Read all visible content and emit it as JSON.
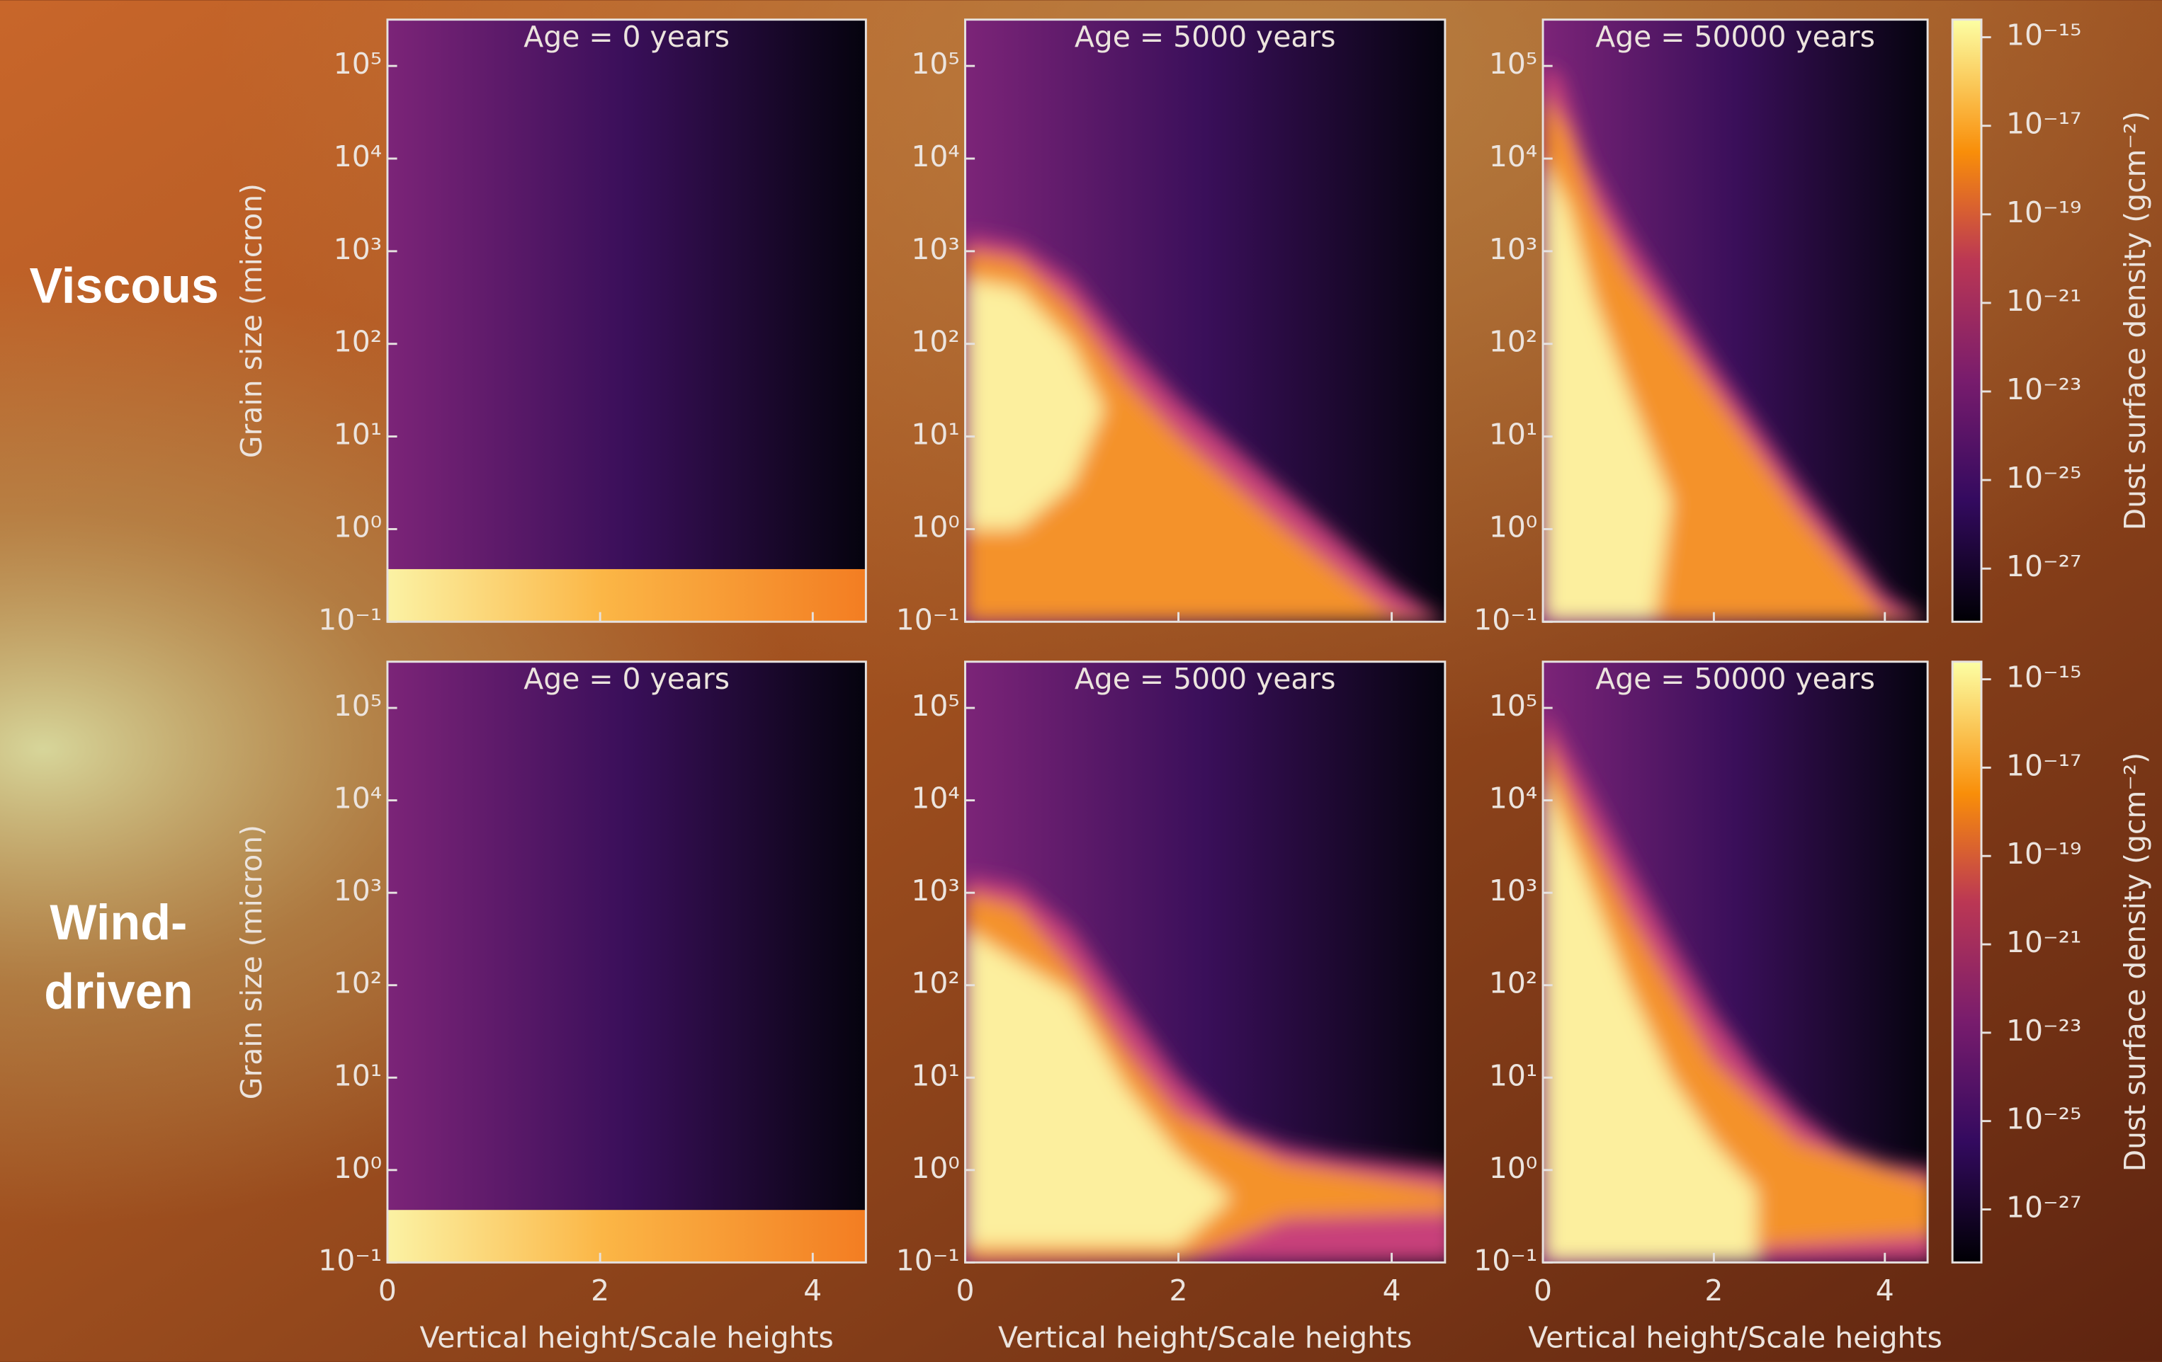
{
  "rows": [
    {
      "label": [
        "Viscous"
      ]
    },
    {
      "label": [
        "Wind-",
        "driven"
      ]
    }
  ],
  "chart_data": [
    {
      "type": "heatmap",
      "title": "Age = 0 years",
      "ylabel": "Grain size (micron)",
      "xlim": [
        0,
        4.5
      ],
      "xticks": [
        0,
        2,
        4
      ],
      "log_y": true,
      "ylim": [
        0.1,
        316228
      ],
      "yticks": [
        {
          "value": 0.1,
          "label": "10⁻¹"
        },
        {
          "value": 1,
          "label": "10⁰"
        },
        {
          "value": 10,
          "label": "10¹"
        },
        {
          "value": 100,
          "label": "10²"
        },
        {
          "value": 1000,
          "label": "10³"
        },
        {
          "value": 10000,
          "label": "10⁴"
        },
        {
          "value": 100000,
          "label": "10⁵"
        }
      ]
    },
    {
      "type": "heatmap",
      "title": "Age = 5000 years",
      "xlim": [
        0,
        4.5
      ],
      "xticks": [
        0,
        2,
        4
      ],
      "log_y": true,
      "ylim": [
        0.1,
        316228
      ],
      "yticks": [
        {
          "value": 0.1,
          "label": "10⁻¹"
        },
        {
          "value": 1,
          "label": "10⁰"
        },
        {
          "value": 10,
          "label": "10¹"
        },
        {
          "value": 100,
          "label": "10²"
        },
        {
          "value": 1000,
          "label": "10³"
        },
        {
          "value": 10000,
          "label": "10⁴"
        },
        {
          "value": 100000,
          "label": "10⁵"
        }
      ]
    },
    {
      "type": "heatmap",
      "title": "Age = 50000 years",
      "xlim": [
        0,
        4.5
      ],
      "xticks": [
        0,
        2,
        4
      ],
      "log_y": true,
      "ylim": [
        0.1,
        316228
      ],
      "yticks": [
        {
          "value": 0.1,
          "label": "10⁻¹"
        },
        {
          "value": 1,
          "label": "10⁰"
        },
        {
          "value": 10,
          "label": "10¹"
        },
        {
          "value": 100,
          "label": "10²"
        },
        {
          "value": 1000,
          "label": "10³"
        },
        {
          "value": 10000,
          "label": "10⁴"
        },
        {
          "value": 100000,
          "label": "10⁵"
        }
      ]
    },
    {
      "type": "heatmap",
      "title": "Age = 0 years",
      "xlabel": "Vertical height/Scale heights",
      "ylabel": "Grain size (micron)",
      "xlim": [
        0,
        4.5
      ],
      "xticks": [
        0,
        2,
        4
      ],
      "log_y": true,
      "ylim": [
        0.1,
        316228
      ],
      "yticks": [
        {
          "value": 0.1,
          "label": "10⁻¹"
        },
        {
          "value": 1,
          "label": "10⁰"
        },
        {
          "value": 10,
          "label": "10¹"
        },
        {
          "value": 100,
          "label": "10²"
        },
        {
          "value": 1000,
          "label": "10³"
        },
        {
          "value": 10000,
          "label": "10⁴"
        },
        {
          "value": 100000,
          "label": "10⁵"
        }
      ]
    },
    {
      "type": "heatmap",
      "title": "Age = 5000 years",
      "xlabel": "Vertical height/Scale heights",
      "xlim": [
        0,
        4.5
      ],
      "xticks": [
        0,
        2,
        4
      ],
      "log_y": true,
      "ylim": [
        0.1,
        316228
      ],
      "yticks": [
        {
          "value": 0.1,
          "label": "10⁻¹"
        },
        {
          "value": 1,
          "label": "10⁰"
        },
        {
          "value": 10,
          "label": "10¹"
        },
        {
          "value": 100,
          "label": "10²"
        },
        {
          "value": 1000,
          "label": "10³"
        },
        {
          "value": 10000,
          "label": "10⁴"
        },
        {
          "value": 100000,
          "label": "10⁵"
        }
      ]
    },
    {
      "type": "heatmap",
      "title": "Age = 50000 years",
      "xlabel": "Vertical height/Scale heights",
      "xlim": [
        0,
        4.5
      ],
      "xticks": [
        0,
        2,
        4
      ],
      "log_y": true,
      "ylim": [
        0.1,
        316228
      ],
      "yticks": [
        {
          "value": 0.1,
          "label": "10⁻¹"
        },
        {
          "value": 1,
          "label": "10⁰"
        },
        {
          "value": 10,
          "label": "10¹"
        },
        {
          "value": 100,
          "label": "10²"
        },
        {
          "value": 1000,
          "label": "10³"
        },
        {
          "value": 10000,
          "label": "10⁴"
        },
        {
          "value": 100000,
          "label": "10⁵"
        }
      ]
    },
    {
      "type": "colorbar",
      "label": "Dust surface density (gcm⁻²)",
      "log": true,
      "clim": [
        6.3e-29,
        2.5e-15
      ],
      "ticks": [
        {
          "value": 1e-15,
          "label": "10⁻¹⁵"
        },
        {
          "value": 1e-17,
          "label": "10⁻¹⁷"
        },
        {
          "value": 1e-19,
          "label": "10⁻¹⁹"
        },
        {
          "value": 1e-21,
          "label": "10⁻²¹"
        },
        {
          "value": 1e-23,
          "label": "10⁻²³"
        },
        {
          "value": 1e-25,
          "label": "10⁻²⁵"
        },
        {
          "value": 1e-27,
          "label": "10⁻²⁷"
        }
      ]
    },
    {
      "type": "colorbar",
      "label": "Dust surface density (gcm⁻²)",
      "log": true,
      "clim": [
        6.3e-29,
        2.5e-15
      ],
      "ticks": [
        {
          "value": 1e-15,
          "label": "10⁻¹⁵"
        },
        {
          "value": 1e-17,
          "label": "10⁻¹⁷"
        },
        {
          "value": 1e-19,
          "label": "10⁻¹⁹"
        },
        {
          "value": 1e-21,
          "label": "10⁻²¹"
        },
        {
          "value": 1e-23,
          "label": "10⁻²³"
        },
        {
          "value": 1e-25,
          "label": "10⁻²⁵"
        },
        {
          "value": 1e-27,
          "label": "10⁻²⁷"
        }
      ]
    }
  ]
}
